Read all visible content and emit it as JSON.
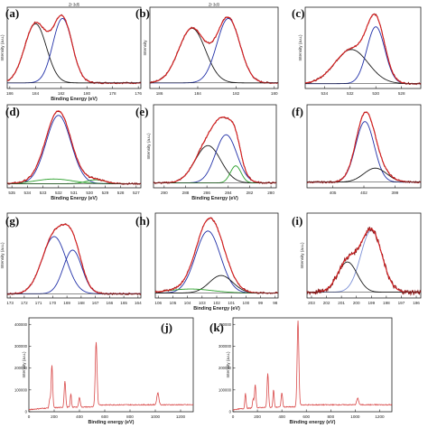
{
  "colors": {
    "raw": "#8b1a1a",
    "fit": "#e32020",
    "blue": "#2130a8",
    "black": "#1a1a1a",
    "green": "#2ca02c",
    "light_blue": "#7b8fd6",
    "survey": "#d94a4a"
  },
  "chart_data": [
    {
      "panel_label": "(a)",
      "type": "line",
      "title": "Zr 3d5",
      "xlabel": "Binding Energy (eV)",
      "ylabel": "Intensity (a.u.)",
      "x_ticks": [
        "186",
        "184",
        "182",
        "180",
        "178",
        "176"
      ],
      "xlim": [
        186.2,
        175.8
      ],
      "baseline": 0.05,
      "peaks": [
        {
          "center": 184.0,
          "height": 0.78,
          "width": 0.85,
          "color": "black"
        },
        {
          "center": 181.9,
          "height": 0.85,
          "width": 0.75,
          "color": "blue"
        }
      ]
    },
    {
      "panel_label": "(b)",
      "type": "line",
      "title": "Zr 3d3",
      "xlabel": "",
      "ylabel": "Intensity",
      "x_ticks": [
        "186",
        "184",
        "182",
        "180"
      ],
      "xlim": [
        186.5,
        179.8
      ],
      "baseline": 0.05,
      "peaks": [
        {
          "center": 184.3,
          "height": 0.72,
          "width": 0.7,
          "color": "black"
        },
        {
          "center": 182.4,
          "height": 0.85,
          "width": 0.6,
          "color": "blue"
        }
      ]
    },
    {
      "panel_label": "(c)",
      "type": "line",
      "title": "",
      "xlabel": "",
      "ylabel": "Intensity (a.u.)",
      "x_ticks": [
        "534",
        "532",
        "530",
        "528"
      ],
      "xlim": [
        535.5,
        526.5
      ],
      "baseline": 0.04,
      "peaks": [
        {
          "center": 531.9,
          "height": 0.45,
          "width": 1.3,
          "color": "black"
        },
        {
          "center": 530.0,
          "height": 0.75,
          "width": 0.7,
          "color": "blue"
        }
      ]
    },
    {
      "panel_label": "(d)",
      "type": "line",
      "title": "",
      "xlabel": "Binding Energy (eV)",
      "ylabel": "",
      "x_ticks": [
        "535",
        "534",
        "533",
        "532",
        "531",
        "530",
        "529",
        "528",
        "527"
      ],
      "xlim": [
        535.3,
        526.7
      ],
      "baseline": 0.03,
      "peaks": [
        {
          "center": 532.0,
          "height": 0.88,
          "width": 0.8,
          "color": "blue"
        },
        {
          "center": 532.3,
          "height": 0.06,
          "width": 1.2,
          "color": "green"
        },
        {
          "center": 529.6,
          "height": 0.05,
          "width": 0.6,
          "color": "green"
        }
      ]
    },
    {
      "panel_label": "(e)",
      "type": "line",
      "title": "",
      "xlabel": "Binding Energy (eV)",
      "ylabel": "Intensity (a.u.)",
      "x_ticks": [
        "290",
        "288",
        "286",
        "284",
        "282",
        "280"
      ],
      "xlim": [
        291.0,
        279.5
      ],
      "baseline": 0.04,
      "peaks": [
        {
          "center": 285.9,
          "height": 0.48,
          "width": 1.2,
          "color": "black"
        },
        {
          "center": 284.2,
          "height": 0.62,
          "width": 1.0,
          "color": "blue"
        },
        {
          "center": 283.3,
          "height": 0.22,
          "width": 0.5,
          "color": "green"
        }
      ]
    },
    {
      "panel_label": "(f)",
      "type": "line",
      "title": "",
      "xlabel": "",
      "ylabel": "",
      "x_ticks": [
        "405",
        "402",
        "399"
      ],
      "xlim": [
        407.5,
        396.5
      ],
      "baseline": 0.05,
      "peaks": [
        {
          "center": 401.9,
          "height": 0.78,
          "width": 0.9,
          "color": "blue"
        },
        {
          "center": 400.9,
          "height": 0.18,
          "width": 1.1,
          "color": "black"
        }
      ]
    },
    {
      "panel_label": "(g)",
      "type": "line",
      "title": "",
      "xlabel": "",
      "ylabel": "Intensity (a.u.)",
      "x_ticks": [
        "173",
        "172",
        "171",
        "170",
        "169",
        "168",
        "167",
        "166",
        "165",
        "164"
      ],
      "xlim": [
        173.2,
        163.8
      ],
      "baseline": 0.03,
      "peaks": [
        {
          "center": 169.9,
          "height": 0.72,
          "width": 0.85,
          "color": "blue"
        },
        {
          "center": 168.6,
          "height": 0.55,
          "width": 0.65,
          "color": "blue"
        }
      ]
    },
    {
      "panel_label": "(h)",
      "type": "line",
      "title": "",
      "xlabel": "Binding Energy (eV)",
      "ylabel": "",
      "x_ticks": [
        "106",
        "105",
        "104",
        "103",
        "102",
        "101",
        "100",
        "99",
        "98"
      ],
      "xlim": [
        106.2,
        97.8
      ],
      "baseline": 0.04,
      "peaks": [
        {
          "center": 102.6,
          "height": 0.78,
          "width": 0.85,
          "color": "blue"
        },
        {
          "center": 101.7,
          "height": 0.22,
          "width": 0.8,
          "color": "black"
        },
        {
          "center": 103.8,
          "height": 0.05,
          "width": 1.5,
          "color": "green"
        }
      ]
    },
    {
      "panel_label": "(i)",
      "type": "line",
      "title": "",
      "xlabel": "",
      "ylabel": "Intensity (a.u.)",
      "x_ticks": [
        "203",
        "202",
        "201",
        "200",
        "199",
        "198",
        "197",
        "196"
      ],
      "xlim": [
        203.3,
        195.7
      ],
      "baseline": 0.05,
      "noisy": true,
      "peaks": [
        {
          "center": 199.0,
          "height": 0.78,
          "width": 0.7,
          "color": "light_blue"
        },
        {
          "center": 200.6,
          "height": 0.38,
          "width": 0.65,
          "color": "black"
        }
      ]
    },
    {
      "panel_label": "(j)",
      "type": "line",
      "title": "",
      "xlabel": "Binding energy (eV)",
      "ylabel": "Intensity (a.u.)",
      "x_ticks": [
        "0",
        "200",
        "400",
        "600",
        "800",
        "1000",
        "1200"
      ],
      "y_ticks": [
        "0",
        "100000",
        "200000",
        "300000",
        "400000"
      ],
      "xlim": [
        0,
        1300
      ],
      "ylim": [
        0,
        430000
      ],
      "annotations": [],
      "survey_peaks": [
        [
          182,
          195000,
          6
        ],
        [
          285,
          120000,
          6
        ],
        [
          332,
          60000,
          5
        ],
        [
          400,
          45000,
          6
        ],
        [
          532,
          298000,
          7
        ],
        [
          165,
          40000,
          5
        ],
        [
          1020,
          55000,
          8
        ]
      ]
    },
    {
      "panel_label": "(k)",
      "type": "line",
      "title": "",
      "xlabel": "Binding energy (eV)",
      "ylabel": "Intensity (a.u.)",
      "x_ticks": [
        "0",
        "200",
        "400",
        "600",
        "800",
        "1000",
        "1200"
      ],
      "y_ticks": [
        "0",
        "100000",
        "200000",
        "300000",
        "400000"
      ],
      "xlim": [
        0,
        1300
      ],
      "ylim": [
        0,
        430000
      ],
      "annotations": [],
      "survey_peaks": [
        [
          102,
          70000,
          5
        ],
        [
          182,
          105000,
          6
        ],
        [
          285,
          155000,
          6
        ],
        [
          332,
          80000,
          5
        ],
        [
          400,
          65000,
          6
        ],
        [
          532,
          395000,
          7
        ],
        [
          165,
          40000,
          5
        ],
        [
          1020,
          30000,
          8
        ]
      ]
    }
  ]
}
